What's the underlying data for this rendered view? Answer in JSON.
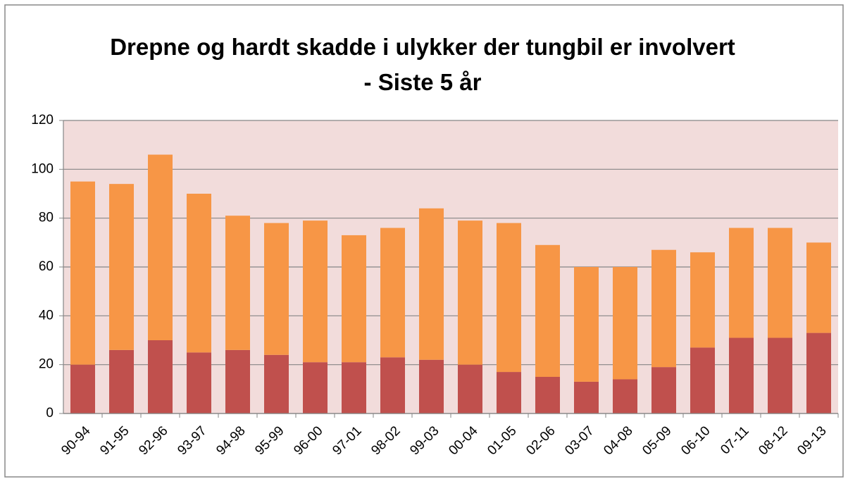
{
  "chart_data": {
    "type": "stacked_bar",
    "title": "Drepne og hardt skadde i ulykker der tungbil er involvert - Siste 5 år",
    "categories": [
      "90-94",
      "91-95",
      "92-96",
      "93-97",
      "94-98",
      "95-99",
      "96-00",
      "97-01",
      "98-02",
      "99-03",
      "00-04",
      "01-05",
      "02-06",
      "03-07",
      "04-08",
      "05-09",
      "06-10",
      "07-11",
      "08-12",
      "09-13"
    ],
    "series": [
      {
        "color": "#c0504d",
        "values": [
          20,
          26,
          30,
          25,
          26,
          24,
          21,
          21,
          23,
          22,
          20,
          17,
          15,
          13,
          14,
          19,
          27,
          31,
          31,
          33
        ]
      },
      {
        "color": "#f79646",
        "values": [
          75,
          68,
          76,
          65,
          55,
          54,
          58,
          52,
          53,
          62,
          59,
          61,
          54,
          47,
          46,
          48,
          39,
          45,
          45,
          37
        ]
      }
    ],
    "ylim": [
      0,
      120
    ],
    "yticks": [
      0,
      20,
      40,
      60,
      80,
      100,
      120
    ],
    "grid": true,
    "plot_background": "#f2dcdb"
  }
}
